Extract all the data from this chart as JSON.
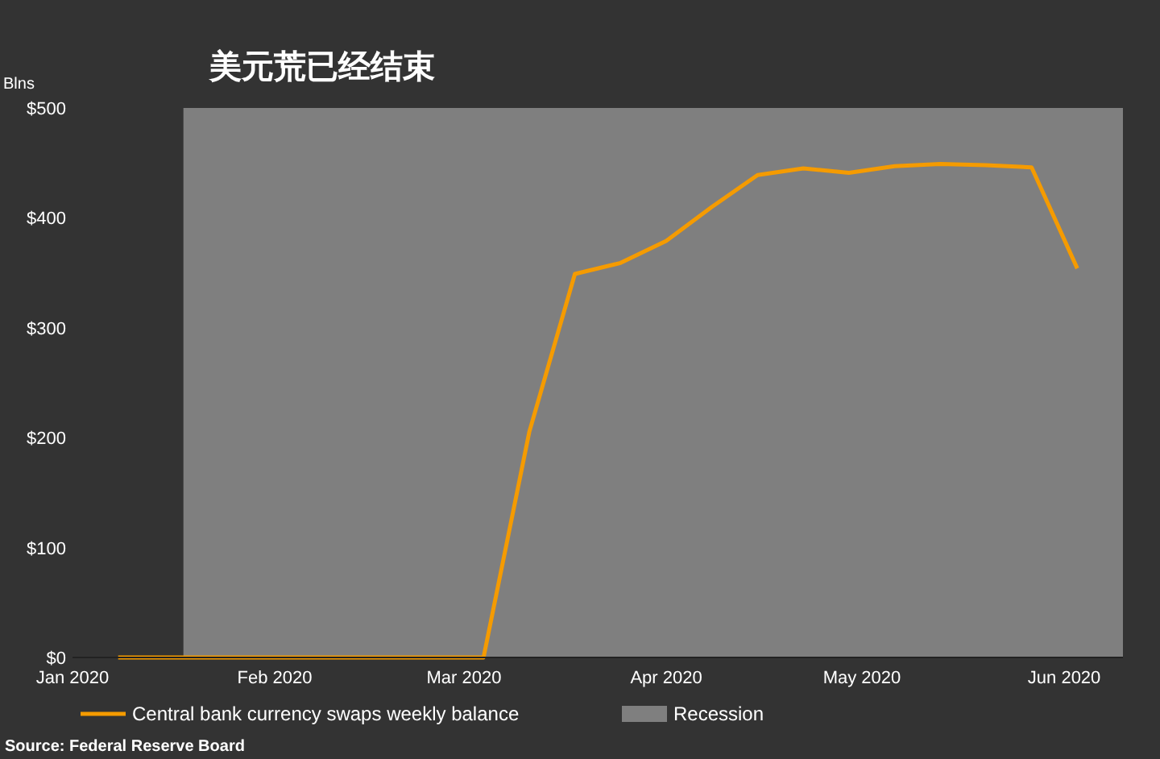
{
  "chart_data": {
    "type": "line",
    "title": "美元荒已经结束",
    "ylabel": "Blns",
    "x": [
      "2020-01-08",
      "2020-01-15",
      "2020-01-22",
      "2020-01-29",
      "2020-02-05",
      "2020-02-12",
      "2020-02-19",
      "2020-02-26",
      "2020-03-04",
      "2020-03-11",
      "2020-03-18",
      "2020-03-25",
      "2020-04-01",
      "2020-04-08",
      "2020-04-15",
      "2020-04-22",
      "2020-04-29",
      "2020-05-06",
      "2020-05-13",
      "2020-05-20",
      "2020-05-27",
      "2020-06-03"
    ],
    "series": [
      {
        "name": "Central bank currency swaps weekly balance",
        "color": "#f59b00",
        "values": [
          0,
          0,
          0,
          0,
          0,
          0,
          0,
          0,
          0,
          205,
          349,
          359,
          379,
          410,
          439,
          445,
          441,
          447,
          449,
          448,
          446,
          354
        ]
      }
    ],
    "xlim": [
      "2020-01-01",
      "2020-06-10"
    ],
    "xticks": [
      {
        "value": "2020-01-01",
        "label": "Jan 2020"
      },
      {
        "value": "2020-02-01",
        "label": "Feb 2020"
      },
      {
        "value": "2020-03-01",
        "label": "Mar 2020"
      },
      {
        "value": "2020-04-01",
        "label": "Apr 2020"
      },
      {
        "value": "2020-05-01",
        "label": "May 2020"
      },
      {
        "value": "2020-06-01",
        "label": "Jun 2020"
      }
    ],
    "ylim": [
      0,
      500
    ],
    "yticks": [
      {
        "value": 0,
        "label": "$0"
      },
      {
        "value": 100,
        "label": "$100"
      },
      {
        "value": 200,
        "label": "$200"
      },
      {
        "value": 300,
        "label": "$300"
      },
      {
        "value": 400,
        "label": "$400"
      },
      {
        "value": 500,
        "label": "$500"
      }
    ],
    "bands": [
      {
        "axis": "x",
        "from": "2020-01-18",
        "to": "2020-06-10",
        "label": "Recession",
        "color": "#7f7f7f"
      }
    ],
    "legend": "bottom",
    "grid": false,
    "marker": "none",
    "line_style": "solid",
    "annotations": [
      "Source: Federal Reserve Board"
    ]
  }
}
